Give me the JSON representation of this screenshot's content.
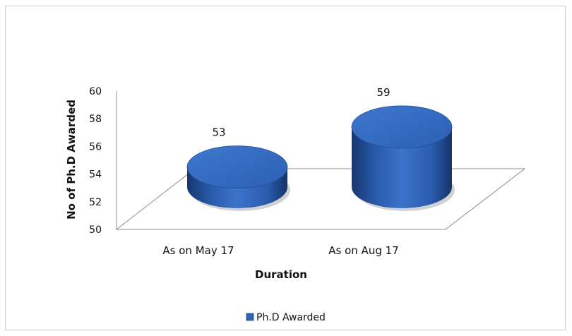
{
  "chart_data": {
    "type": "bar",
    "style": "3d-cylinder",
    "categories": [
      "As on May 17",
      "As on Aug 17"
    ],
    "series": [
      {
        "name": "Ph.D Awarded",
        "values": [
          53,
          59
        ],
        "color": "#2e64b8"
      }
    ],
    "data_labels": [
      "53",
      "59"
    ],
    "xlabel": "Duration",
    "ylabel": "No of Ph.D Awarded",
    "ylim": [
      50,
      60
    ],
    "yticks": [
      "50",
      "52",
      "54",
      "56",
      "58",
      "60"
    ],
    "grid": false,
    "legend": "bottom"
  }
}
